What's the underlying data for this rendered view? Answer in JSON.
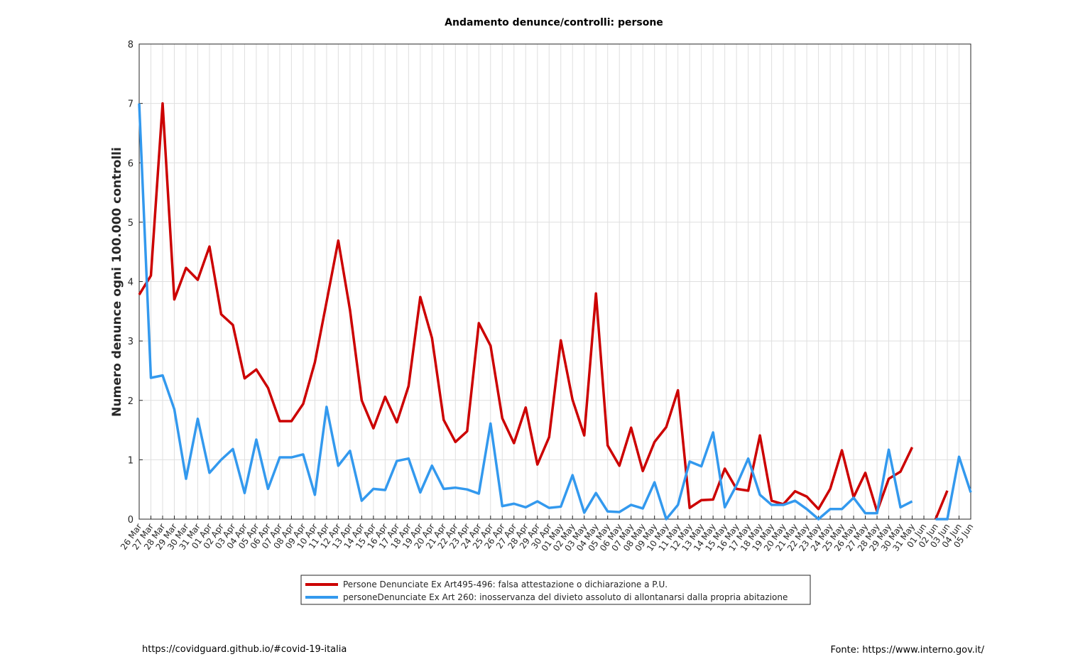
{
  "chart_data": {
    "type": "line",
    "title": "Andamento denunce/controlli: persone",
    "y_label": "Numero denunce ogni 100.000 controlli",
    "footer_left": "https://covidguard.github.io/#covid-19-italia",
    "footer_right": "Fonte: https://www.interno.gov.it/",
    "categories": [
      "26 Mar",
      "27 Mar",
      "28 Mar",
      "29 Mar",
      "30 Mar",
      "31 Mar",
      "01 Apr",
      "02 Apr",
      "03 Apr",
      "04 Apr",
      "05 Apr",
      "06 Apr",
      "07 Apr",
      "08 Apr",
      "09 Apr",
      "10 Apr",
      "11 Apr",
      "12 Apr",
      "13 Apr",
      "14 Apr",
      "15 Apr",
      "16 Apr",
      "17 Apr",
      "18 Apr",
      "19 Apr",
      "20 Apr",
      "21 Apr",
      "22 Apr",
      "23 Apr",
      "24 Apr",
      "25 Apr",
      "26 Apr",
      "27 Apr",
      "28 Apr",
      "29 Apr",
      "30 Apr",
      "01 May",
      "02 May",
      "03 May",
      "04 May",
      "05 May",
      "06 May",
      "07 May",
      "08 May",
      "09 May",
      "10 May",
      "11 May",
      "12 May",
      "13 May",
      "14 May",
      "15 May",
      "16 May",
      "17 May",
      "18 May",
      "19 May",
      "20 May",
      "21 May",
      "22 May",
      "23 May",
      "24 May",
      "25 May",
      "26 May",
      "27 May",
      "28 May",
      "29 May",
      "30 May",
      "31 May",
      "01 Jun",
      "02 Jun",
      "03 Jun",
      "04 Jun",
      "05 Jun"
    ],
    "series": [
      {
        "name": "Persone Denunciate Ex Art495-496: falsa attestazione o dichiarazione a P.U.",
        "color": "#cc0000",
        "values": [
          3.78,
          4.1,
          7.0,
          3.7,
          4.23,
          4.03,
          4.59,
          3.45,
          3.27,
          2.37,
          2.52,
          2.21,
          1.65,
          1.65,
          1.94,
          2.64,
          3.66,
          4.69,
          3.52,
          2.0,
          1.53,
          2.06,
          1.63,
          2.24,
          3.74,
          3.05,
          1.67,
          1.3,
          1.48,
          3.3,
          2.92,
          1.7,
          1.28,
          1.88,
          0.92,
          1.38,
          3.01,
          2.01,
          1.41,
          3.8,
          1.24,
          0.9,
          1.54,
          0.81,
          1.3,
          1.55,
          2.17,
          0.19,
          0.32,
          0.33,
          0.85,
          0.51,
          0.48,
          1.41,
          0.31,
          0.25,
          0.47,
          0.38,
          0.17,
          0.51,
          1.16,
          0.37,
          0.78,
          0.13,
          0.68,
          0.8,
          1.21,
          null,
          0.0,
          0.48,
          null,
          null
        ]
      },
      {
        "name": "personeDenunciate Ex Art 260: inosservanza del divieto assoluto di allontanarsi dalla propria abitazione",
        "color": "#3399ee",
        "values": [
          7.0,
          2.38,
          2.42,
          1.85,
          0.68,
          1.69,
          0.78,
          1.0,
          1.18,
          0.44,
          1.34,
          0.51,
          1.04,
          1.04,
          1.09,
          0.41,
          1.89,
          0.9,
          1.15,
          0.31,
          0.51,
          0.49,
          0.98,
          1.02,
          0.45,
          0.9,
          0.51,
          0.53,
          0.5,
          0.43,
          1.61,
          0.22,
          0.26,
          0.2,
          0.3,
          0.19,
          0.21,
          0.74,
          0.11,
          0.44,
          0.13,
          0.12,
          0.24,
          0.18,
          0.62,
          0.0,
          0.24,
          0.97,
          0.89,
          1.46,
          0.2,
          0.57,
          1.02,
          0.41,
          0.24,
          0.24,
          0.31,
          0.17,
          0.0,
          0.17,
          0.17,
          0.36,
          0.1,
          0.1,
          1.17,
          0.2,
          0.3,
          null,
          0.0,
          0.0,
          1.05,
          0.45
        ]
      }
    ],
    "ylim": [
      0,
      8
    ],
    "yticks": [
      0,
      1,
      2,
      3,
      4,
      5,
      6,
      7,
      8
    ],
    "grid": true
  }
}
